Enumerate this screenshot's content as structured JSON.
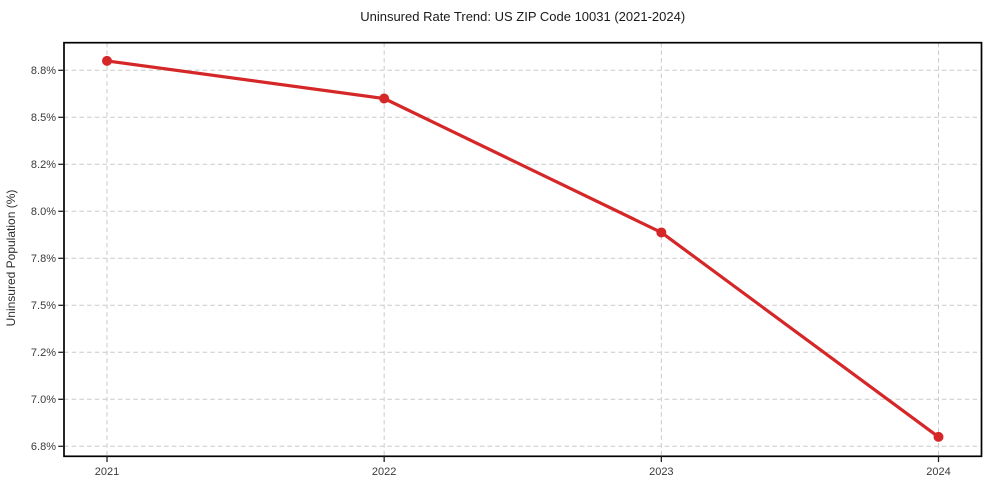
{
  "chart_data": {
    "type": "line",
    "title": "Uninsured Rate Trend: US ZIP Code 10031 (2021-2024)",
    "xlabel": "",
    "ylabel": "Uninsured Population (%)",
    "x": [
      "2021",
      "2022",
      "2023",
      "2024"
    ],
    "values": [
      8.86,
      8.62,
      7.91,
      6.84
    ],
    "x_tick_labels": [
      "2021",
      "2022",
      "2023",
      "2024"
    ],
    "y_tick_labels": [
      "8.8%",
      "8.5%",
      "8.2%",
      "8.0%",
      "7.8%",
      "7.5%",
      "7.2%",
      "7.0%",
      "6.8%"
    ],
    "y_tick_values": [
      8.8,
      8.5,
      8.2,
      8.0,
      7.8,
      7.5,
      7.2,
      7.0,
      6.8
    ],
    "ylim": [
      6.76,
      8.92
    ],
    "grid": true,
    "grid_style": "dashed",
    "legend": false,
    "marker": "circle",
    "colors": {
      "line": "#d62728",
      "grid": "#cacaca",
      "spine": "#000000",
      "tick": "#222222"
    }
  }
}
